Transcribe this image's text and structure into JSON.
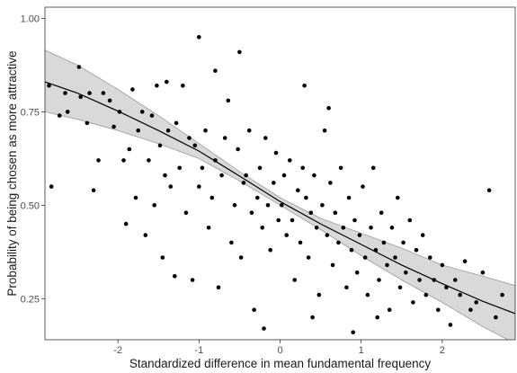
{
  "chart_data": {
    "type": "scatter",
    "title": "",
    "xlabel": "Standardized difference in mean fundamental frequency",
    "ylabel": "Probability of being chosen as more attractive",
    "xlim": [
      -2.9,
      2.9
    ],
    "ylim": [
      0.14,
      1.03
    ],
    "x_ticks": [
      -2,
      -1,
      0,
      1,
      2
    ],
    "x_tick_labels": [
      "-2",
      "-1",
      "0",
      "1",
      "2"
    ],
    "y_ticks": [
      0.25,
      0.5,
      0.75,
      1.0
    ],
    "y_tick_labels": [
      "0.25",
      "0.50",
      "0.75",
      "1.00"
    ],
    "grid": false,
    "legend": "none",
    "colors": {
      "points": "#000000",
      "fit_line": "#000000",
      "ribbon_fill": "#d9d9d9",
      "ribbon_edge": "#9a9a9a",
      "panel_border": "#333333"
    },
    "fit": {
      "x": [
        -2.9,
        -2.5,
        -2.0,
        -1.5,
        -1.0,
        -0.5,
        0.0,
        0.5,
        1.0,
        1.5,
        2.0,
        2.5,
        2.9
      ],
      "y": [
        0.83,
        0.8,
        0.752,
        0.7,
        0.645,
        0.578,
        0.51,
        0.45,
        0.395,
        0.34,
        0.29,
        0.243,
        0.21
      ],
      "lower": [
        0.75,
        0.73,
        0.7,
        0.665,
        0.625,
        0.565,
        0.5,
        0.435,
        0.365,
        0.3,
        0.24,
        0.175,
        0.13
      ],
      "upper": [
        0.915,
        0.875,
        0.81,
        0.74,
        0.665,
        0.59,
        0.52,
        0.465,
        0.425,
        0.385,
        0.34,
        0.31,
        0.285
      ]
    },
    "series": [
      {
        "x": [
          -2.85,
          -2.82,
          -2.72,
          -2.65,
          -2.62,
          -2.48,
          -2.46,
          -2.38,
          -2.35,
          -2.3,
          -2.24,
          -2.18,
          -2.1,
          -2.05,
          -1.98,
          -1.93,
          -1.9,
          -1.86,
          -1.82,
          -1.78,
          -1.75,
          -1.7,
          -1.66,
          -1.62,
          -1.58,
          -1.55,
          -1.52,
          -1.48,
          -1.45,
          -1.42,
          -1.38,
          -1.35,
          -1.3,
          -1.28,
          -1.24,
          -1.2,
          -1.16,
          -1.12,
          -1.08,
          -1.05,
          -1.0,
          -0.96,
          -0.92,
          -0.88,
          -0.84,
          -0.8,
          -0.76,
          -0.72,
          -0.68,
          -0.64,
          -0.6,
          -0.56,
          -0.52,
          -0.48,
          -0.45,
          -0.42,
          -0.38,
          -0.35,
          -0.32,
          -0.28,
          -0.25,
          -0.22,
          -0.18,
          -0.15,
          -0.12,
          -0.08,
          -0.05,
          -0.02,
          0.02,
          0.05,
          0.08,
          0.12,
          0.15,
          0.18,
          0.22,
          0.25,
          0.28,
          0.32,
          0.35,
          0.38,
          0.42,
          0.45,
          0.48,
          0.52,
          0.55,
          0.58,
          0.62,
          0.65,
          0.68,
          0.72,
          0.75,
          0.78,
          0.82,
          0.85,
          0.88,
          0.92,
          0.95,
          0.98,
          1.02,
          1.05,
          1.08,
          1.12,
          1.15,
          1.18,
          1.22,
          1.25,
          1.28,
          1.32,
          1.35,
          1.38,
          1.42,
          1.45,
          1.48,
          1.52,
          1.55,
          1.6,
          1.64,
          1.68,
          1.72,
          1.76,
          1.8,
          1.85,
          1.9,
          1.95,
          2.0,
          2.05,
          2.1,
          2.16,
          2.22,
          2.28,
          2.35,
          2.42,
          2.5,
          2.58,
          2.66,
          2.74,
          -1.0,
          -0.5,
          0.3,
          0.6,
          -0.2,
          0.9,
          -0.8,
          0.4,
          -1.4,
          1.2
        ],
        "y": [
          0.82,
          0.55,
          0.74,
          0.8,
          0.75,
          0.87,
          0.79,
          0.72,
          0.8,
          0.54,
          0.62,
          0.8,
          0.78,
          0.71,
          0.75,
          0.62,
          0.45,
          0.65,
          0.81,
          0.52,
          0.7,
          0.75,
          0.42,
          0.62,
          0.74,
          0.5,
          0.82,
          0.66,
          0.36,
          0.58,
          0.7,
          0.55,
          0.31,
          0.72,
          0.6,
          0.82,
          0.48,
          0.68,
          0.3,
          0.66,
          0.55,
          0.6,
          0.7,
          0.44,
          0.52,
          0.62,
          0.28,
          0.58,
          0.68,
          0.78,
          0.4,
          0.5,
          0.65,
          0.36,
          0.56,
          0.58,
          0.7,
          0.48,
          0.22,
          0.52,
          0.6,
          0.44,
          0.68,
          0.5,
          0.38,
          0.56,
          0.64,
          0.46,
          0.5,
          0.58,
          0.42,
          0.62,
          0.46,
          0.3,
          0.54,
          0.4,
          0.6,
          0.52,
          0.36,
          0.48,
          0.58,
          0.44,
          0.26,
          0.5,
          0.7,
          0.42,
          0.56,
          0.34,
          0.48,
          0.4,
          0.6,
          0.44,
          0.28,
          0.52,
          0.38,
          0.46,
          0.32,
          0.42,
          0.55,
          0.36,
          0.26,
          0.44,
          0.6,
          0.38,
          0.3,
          0.48,
          0.4,
          0.34,
          0.22,
          0.44,
          0.36,
          0.52,
          0.28,
          0.4,
          0.32,
          0.46,
          0.24,
          0.38,
          0.3,
          0.42,
          0.26,
          0.36,
          0.3,
          0.22,
          0.34,
          0.28,
          0.18,
          0.3,
          0.26,
          0.35,
          0.22,
          0.24,
          0.32,
          0.54,
          0.2,
          0.26,
          0.95,
          0.91,
          0.82,
          0.76,
          0.17,
          0.16,
          0.86,
          0.2,
          0.83,
          0.2
        ]
      }
    ]
  }
}
